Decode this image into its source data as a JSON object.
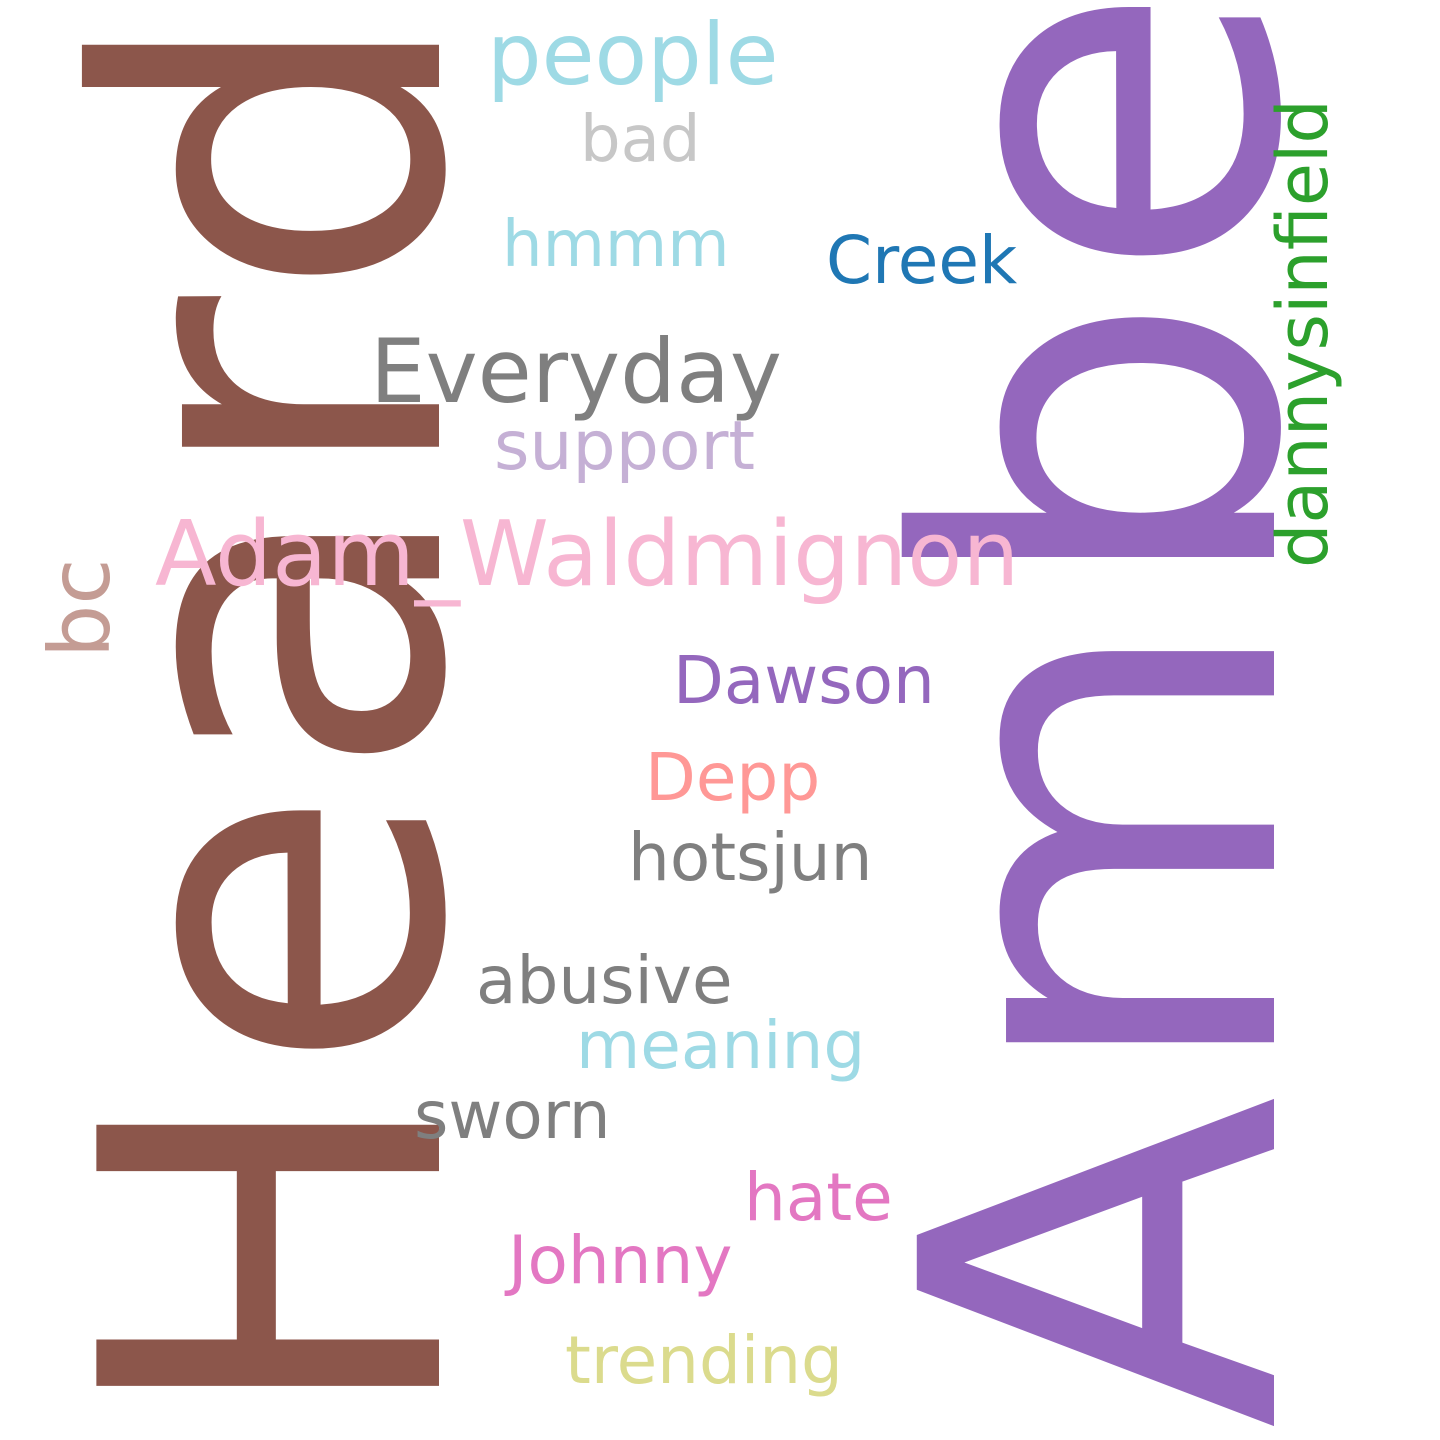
{
  "words": {
    "heard": {
      "text": "Heard",
      "color": "#8c564b",
      "orientation": "vertical"
    },
    "amber": {
      "text": "Amber",
      "color": "#9467bd",
      "orientation": "vertical"
    },
    "dannysinfield": {
      "text": "dannysinfield",
      "color": "#2ca02c",
      "orientation": "vertical"
    },
    "bc": {
      "text": "bc",
      "color": "#c49c94",
      "orientation": "vertical"
    },
    "people": {
      "text": "people",
      "color": "#9edae5"
    },
    "bad": {
      "text": "bad",
      "color": "#c7c7c7"
    },
    "hmmm": {
      "text": "hmmm",
      "color": "#9edae5"
    },
    "creek": {
      "text": "Creek",
      "color": "#1f77b4"
    },
    "everyday": {
      "text": "Everyday",
      "color": "#7f7f7f"
    },
    "support": {
      "text": "support",
      "color": "#c5b0d5"
    },
    "adam_waldmignon": {
      "text": "Adam_Waldmignon",
      "color": "#f7b6d2"
    },
    "dawson": {
      "text": "Dawson",
      "color": "#9467bd"
    },
    "depp": {
      "text": "Depp",
      "color": "#ff9896"
    },
    "hotsjun": {
      "text": "hotsjun",
      "color": "#7f7f7f"
    },
    "abusive": {
      "text": "abusive",
      "color": "#7f7f7f"
    },
    "meaning": {
      "text": "meaning",
      "color": "#9edae5"
    },
    "sworn": {
      "text": "sworn",
      "color": "#7f7f7f"
    },
    "hate": {
      "text": "hate",
      "color": "#e377c2"
    },
    "johnny": {
      "text": "Johnny",
      "color": "#e377c2"
    },
    "trending": {
      "text": "trending",
      "color": "#dbdb8d"
    }
  }
}
